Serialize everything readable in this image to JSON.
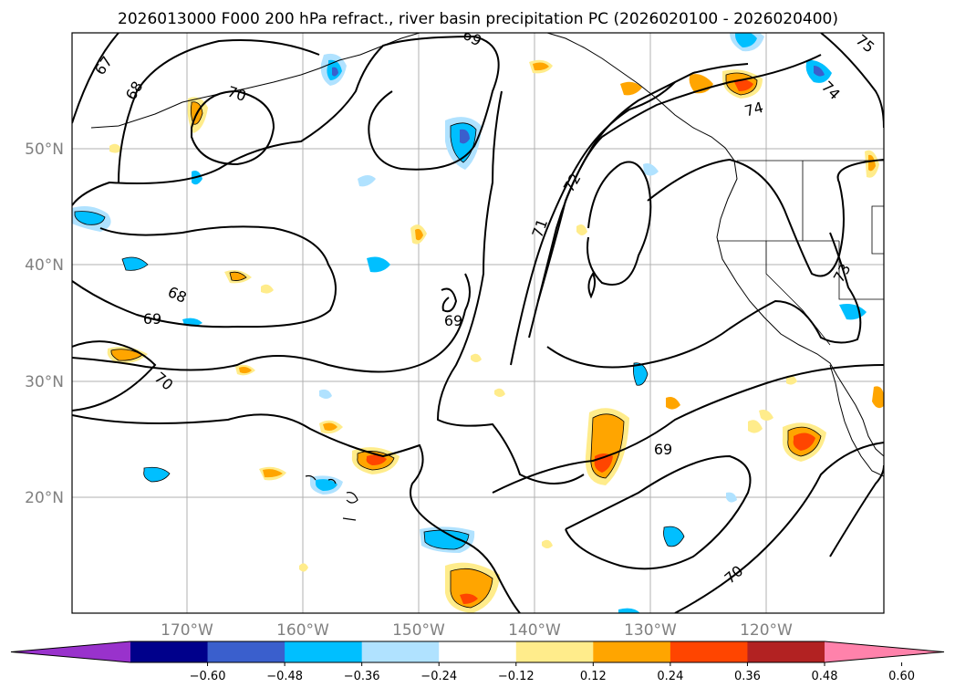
{
  "title": "2026013000 F000 200 hPa refract., river basin precipitation PC (2026020100 - 2026020400)",
  "lat_labels": [
    "50°N",
    "40°N",
    "30°N",
    "20°N"
  ],
  "lon_labels": [
    "170°W",
    "160°W",
    "150°W",
    "140°W",
    "130°W",
    "120°W"
  ],
  "contour_labels": [
    "67",
    "68",
    "70",
    "69",
    "68",
    "70",
    "69",
    "69",
    "71",
    "72",
    "74",
    "74",
    "75",
    "73",
    "70",
    "69"
  ],
  "colorbar": {
    "ticks": [
      "−0.60",
      "−0.48",
      "−0.36",
      "−0.24",
      "−0.12",
      "0.12",
      "0.24",
      "0.36",
      "0.48",
      "0.60"
    ],
    "colors": [
      "#9932cc",
      "#00008b",
      "#3a5fcd",
      "#00bfff",
      "#b0e2ff",
      "#ffffff",
      "#ffec8b",
      "#ffa500",
      "#ff4500",
      "#b22222",
      "#ff82ab"
    ]
  },
  "colors": {
    "neg_light": "#b0e2ff",
    "neg_mid": "#00bfff",
    "neg_strong": "#3a5fcd",
    "neg_deep": "#9932cc",
    "pos_light": "#ffec8b",
    "pos_mid": "#ffa500",
    "pos_strong": "#ff4500"
  }
}
